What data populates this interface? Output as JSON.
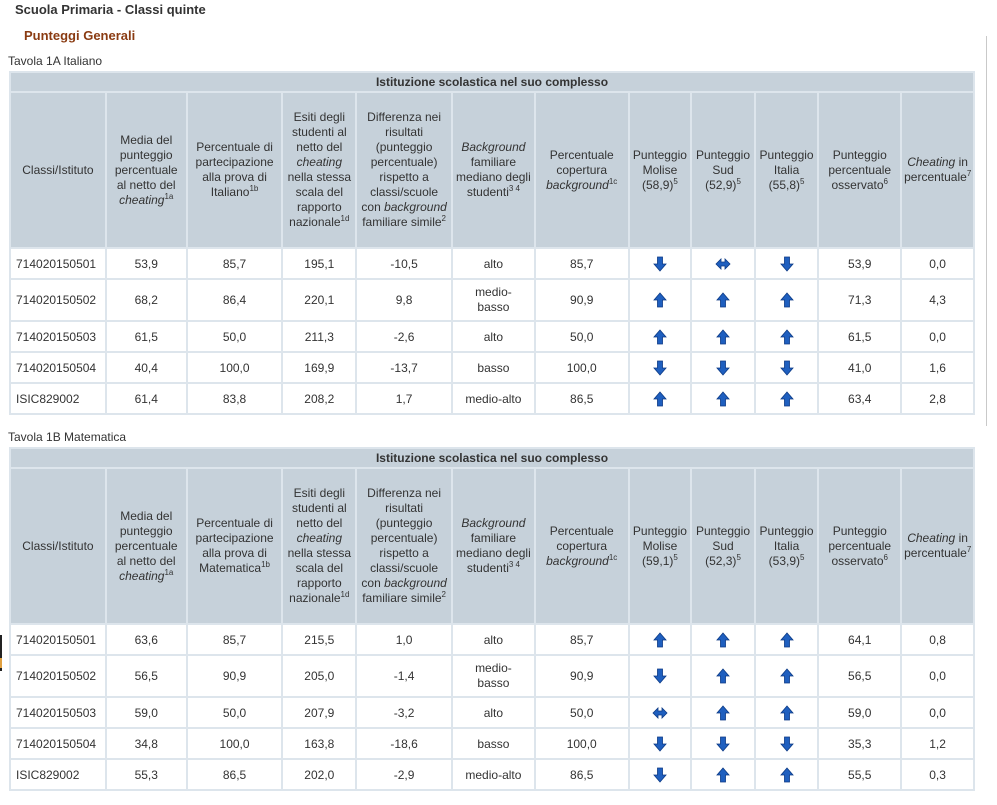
{
  "header": {
    "title": "Scuola Primaria - Classi quinte",
    "subtitle": "Punteggi Generali"
  },
  "tables": [
    {
      "caption": "Tavola 1A Italiano",
      "banner": "Istituzione scolastica nel suo complesso",
      "columns": [
        {
          "text": "Classi/Istituto"
        },
        {
          "text": "Media del punteggio percentuale al netto del ",
          "em": "cheating",
          "sup": "1a"
        },
        {
          "text": "Percentuale di partecipazione alla prova di Italiano",
          "sup": "1b"
        },
        {
          "text": "Esiti degli studenti al netto del ",
          "em": "cheating",
          "after": " nella stessa scala del rapporto nazionale",
          "sup": "1d"
        },
        {
          "text": "Differenza nei risultati (punteggio percentuale) rispetto a classi/scuole con ",
          "em": "background",
          "after": " familiare simile",
          "sup": "2"
        },
        {
          "em_first": "Background",
          "text": " familiare mediano degli studenti",
          "sup": "3 4"
        },
        {
          "text": "Percentuale copertura ",
          "em": "background",
          "sup": "1c"
        },
        {
          "text": "Punteggio Molise (58,9)",
          "sup": "5"
        },
        {
          "text": "Punteggio Sud (52,9)",
          "sup": "5"
        },
        {
          "text": "Punteggio Italia (55,8)",
          "sup": "5"
        },
        {
          "text": "Punteggio percentuale osservato",
          "sup": "6"
        },
        {
          "em_first": "Cheating",
          "text": " in percentuale",
          "sup": "7"
        }
      ],
      "rows": [
        {
          "id": "714020150501",
          "media": "53,9",
          "partecipazione": "85,7",
          "esiti": "195,1",
          "differenza": "-10,5",
          "background": "alto",
          "copertura": "85,7",
          "molise": "down",
          "sud": "equal",
          "italia": "down",
          "osservato": "53,9",
          "cheating": "0,0"
        },
        {
          "id": "714020150502",
          "media": "68,2",
          "partecipazione": "86,4",
          "esiti": "220,1",
          "differenza": "9,8",
          "background": "medio-basso",
          "copertura": "90,9",
          "molise": "up",
          "sud": "up",
          "italia": "up",
          "osservato": "71,3",
          "cheating": "4,3"
        },
        {
          "id": "714020150503",
          "media": "61,5",
          "partecipazione": "50,0",
          "esiti": "211,3",
          "differenza": "-2,6",
          "background": "alto",
          "copertura": "50,0",
          "molise": "up",
          "sud": "up",
          "italia": "up",
          "osservato": "61,5",
          "cheating": "0,0"
        },
        {
          "id": "714020150504",
          "media": "40,4",
          "partecipazione": "100,0",
          "esiti": "169,9",
          "differenza": "-13,7",
          "background": "basso",
          "copertura": "100,0",
          "molise": "down",
          "sud": "down",
          "italia": "down",
          "osservato": "41,0",
          "cheating": "1,6"
        },
        {
          "id": "ISIC829002",
          "media": "61,4",
          "partecipazione": "83,8",
          "esiti": "208,2",
          "differenza": "1,7",
          "background": "medio-alto",
          "copertura": "86,5",
          "molise": "up",
          "sud": "up",
          "italia": "up",
          "osservato": "63,4",
          "cheating": "2,8"
        }
      ]
    },
    {
      "caption": "Tavola 1B Matematica",
      "banner": "Istituzione scolastica nel suo complesso",
      "columns": [
        {
          "text": "Classi/Istituto"
        },
        {
          "text": "Media del punteggio percentuale al netto del ",
          "em": "cheating",
          "sup": "1a"
        },
        {
          "text": "Percentuale di partecipazione alla prova di Matematica",
          "sup": "1b"
        },
        {
          "text": "Esiti degli studenti al netto del ",
          "em": "cheating",
          "after": " nella stessa scala del rapporto nazionale",
          "sup": "1d"
        },
        {
          "text": "Differenza nei risultati (punteggio percentuale) rispetto a classi/scuole con ",
          "em": "background",
          "after": " familiare simile",
          "sup": "2"
        },
        {
          "em_first": "Background",
          "text": " familiare mediano degli studenti",
          "sup": "3 4"
        },
        {
          "text": "Percentuale copertura ",
          "em": "background",
          "sup": "1c"
        },
        {
          "text": "Punteggio Molise (59,1)",
          "sup": "5"
        },
        {
          "text": "Punteggio Sud (52,3)",
          "sup": "5"
        },
        {
          "text": "Punteggio Italia (53,9)",
          "sup": "5"
        },
        {
          "text": "Punteggio percentuale osservato",
          "sup": "6"
        },
        {
          "em_first": "Cheating",
          "text": " in percentuale",
          "sup": "7"
        }
      ],
      "rows": [
        {
          "id": "714020150501",
          "media": "63,6",
          "partecipazione": "85,7",
          "esiti": "215,5",
          "differenza": "1,0",
          "background": "alto",
          "copertura": "85,7",
          "molise": "up",
          "sud": "up",
          "italia": "up",
          "osservato": "64,1",
          "cheating": "0,8"
        },
        {
          "id": "714020150502",
          "media": "56,5",
          "partecipazione": "90,9",
          "esiti": "205,0",
          "differenza": "-1,4",
          "background": "medio-basso",
          "copertura": "90,9",
          "molise": "down",
          "sud": "up",
          "italia": "up",
          "osservato": "56,5",
          "cheating": "0,0"
        },
        {
          "id": "714020150503",
          "media": "59,0",
          "partecipazione": "50,0",
          "esiti": "207,9",
          "differenza": "-3,2",
          "background": "alto",
          "copertura": "50,0",
          "molise": "equal",
          "sud": "up",
          "italia": "up",
          "osservato": "59,0",
          "cheating": "0,0"
        },
        {
          "id": "714020150504",
          "media": "34,8",
          "partecipazione": "100,0",
          "esiti": "163,8",
          "differenza": "-18,6",
          "background": "basso",
          "copertura": "100,0",
          "molise": "down",
          "sud": "down",
          "italia": "down",
          "osservato": "35,3",
          "cheating": "1,2"
        },
        {
          "id": "ISIC829002",
          "media": "55,3",
          "partecipazione": "86,5",
          "esiti": "202,0",
          "differenza": "-2,9",
          "background": "medio-alto",
          "copertura": "86,5",
          "molise": "down",
          "sud": "up",
          "italia": "up",
          "osservato": "55,5",
          "cheating": "0,3"
        }
      ]
    }
  ],
  "colors": {
    "header_bg": "#c6d1da",
    "grid_bg": "#dde5ec",
    "arrow_blue": "#1f5fbf",
    "subtitle": "#8a3b12"
  },
  "icons": {
    "up": "arrow-up-icon",
    "down": "arrow-down-icon",
    "equal": "arrow-left-right-icon"
  }
}
